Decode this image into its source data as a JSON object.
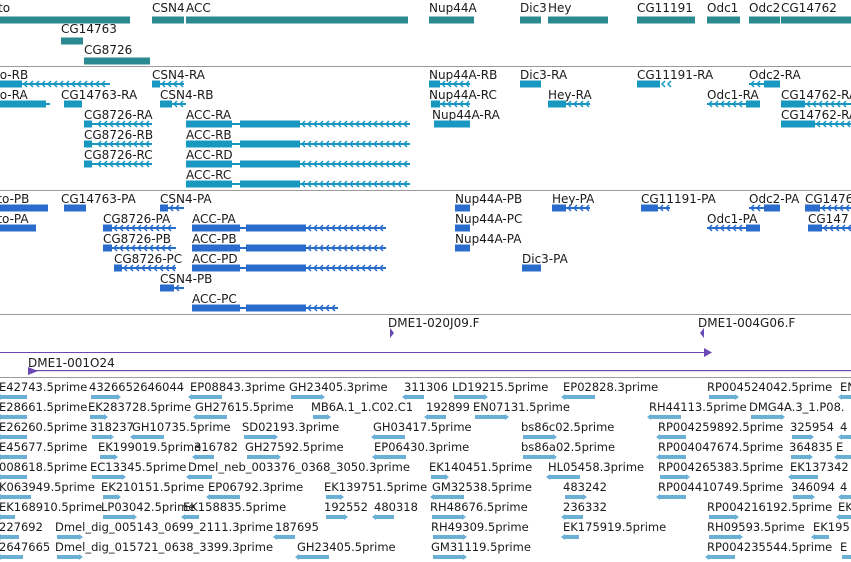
{
  "colors": {
    "gene": "#2a8a8f",
    "transcript_a": "#1898c0",
    "transcript_b": "#2a6ccc",
    "clone": "#6a49b5",
    "est": "#6ab0d6",
    "divider": "#9a9a9a"
  },
  "tracks": [
    {
      "name": "genes",
      "color_key": "gene",
      "features": [
        {
          "label": "to",
          "strand": "+"
        },
        {
          "label": "CG14763",
          "strand": "-"
        },
        {
          "label": "CG8726",
          "strand": "-"
        },
        {
          "label": "CSN4",
          "strand": "+"
        },
        {
          "label": "ACC",
          "strand": "+"
        },
        {
          "label": "Nup44A",
          "strand": "+"
        },
        {
          "label": "Dic3",
          "strand": "+"
        },
        {
          "label": "Hey",
          "strand": "+"
        },
        {
          "label": "CG11191",
          "strand": "+"
        },
        {
          "label": "Odc1",
          "strand": "+"
        },
        {
          "label": "Odc2",
          "strand": "+"
        },
        {
          "label": "CG14762",
          "strand": "+"
        }
      ]
    },
    {
      "name": "transcripts",
      "color_key": "transcript_a",
      "features": [
        {
          "label": "to-RB"
        },
        {
          "label": "to-RA"
        },
        {
          "label": "CG14763-RA"
        },
        {
          "label": "CG8726-RA"
        },
        {
          "label": "CG8726-RB"
        },
        {
          "label": "CG8726-RC"
        },
        {
          "label": "CSN4-RA"
        },
        {
          "label": "CSN4-RB"
        },
        {
          "label": "ACC-RA"
        },
        {
          "label": "ACC-RB"
        },
        {
          "label": "ACC-RD"
        },
        {
          "label": "ACC-RC"
        },
        {
          "label": "Nup44A-RB"
        },
        {
          "label": "Nup44A-RC"
        },
        {
          "label": "Nup44A-RA"
        },
        {
          "label": "Dic3-RA"
        },
        {
          "label": "Hey-RA"
        },
        {
          "label": "CG11191-RA"
        },
        {
          "label": "Odc2-RA"
        },
        {
          "label": "Odc1-RA"
        },
        {
          "label": "CG14762-RA"
        },
        {
          "label": "CG14762-RA"
        }
      ]
    },
    {
      "name": "proteins",
      "color_key": "transcript_b",
      "features": [
        {
          "label": "ito-PB"
        },
        {
          "label": "ito-PA"
        },
        {
          "label": "CG14763-PA"
        },
        {
          "label": "CSN4-PA"
        },
        {
          "label": "CG8726-PA"
        },
        {
          "label": "CG8726-PB"
        },
        {
          "label": "CG8726-PC"
        },
        {
          "label": "CSN4-PB"
        },
        {
          "label": "ACC-PA"
        },
        {
          "label": "ACC-PB"
        },
        {
          "label": "ACC-PD"
        },
        {
          "label": "ACC-PC"
        },
        {
          "label": "Nup44A-PB"
        },
        {
          "label": "Nup44A-PC"
        },
        {
          "label": "Nup44A-PA"
        },
        {
          "label": "Hey-PA"
        },
        {
          "label": "Dic3-PA"
        },
        {
          "label": "CG11191-PA"
        },
        {
          "label": "Odc2-PA"
        },
        {
          "label": "Odc1-PA"
        },
        {
          "label": "CG1476"
        },
        {
          "label": "CG147"
        }
      ]
    },
    {
      "name": "clones",
      "color_key": "clone",
      "features": [
        {
          "label": "DME1-020J09.F"
        },
        {
          "label": "DME1-004G06.F"
        },
        {
          "label": "DME1-001O24"
        }
      ]
    },
    {
      "name": "ests",
      "color_key": "est",
      "rows": [
        [
          "E42743.5prime",
          "4326652646044",
          "EP08843.3prime",
          "GH23405.3prime",
          "311306",
          "LD19215.5prime",
          "EP02828.3prime",
          "RP004524042.5prime",
          "EN"
        ],
        [
          "E28661.5prime",
          "EK283728.5prime",
          "GH27615.5prime",
          "MB6A.1_1.C02.C1",
          "192899",
          "EN07131.5prime",
          "RH44113.5prime",
          "DMG4A.3_1.P08."
        ],
        [
          "E26260.5prime",
          "318237",
          "GH10735.5prime",
          "SD02193.3prime",
          "GH03417.5prime",
          "bs86c02.5prime",
          "RP004259892.5prime",
          "325954",
          "4"
        ],
        [
          "E45677.5prime",
          "EK199019.5prime",
          "316782",
          "GH27592.5prime",
          "EP06430.3prime",
          "bs86a02.5prime",
          "RP004047674.5prime",
          "364835",
          "E"
        ],
        [
          "008618.5prime",
          "EC13345.5prime",
          "Dmel_neb_003376_0368_3050.3prime",
          "EK140451.5prime",
          "HL05458.3prime",
          "RP004265383.5prime",
          "EK137342"
        ],
        [
          "K063949.5prime",
          "EK210151.5prime",
          "EP06792.3prime",
          "EK139751.5prime",
          "GM32538.5prime",
          "483242",
          "RP004410749.5prime",
          "346094",
          "4"
        ],
        [
          "EK168910.5prime",
          "LP03042.5prime",
          "EK158835.5prime",
          "192552",
          "480318",
          "RH48676.5prime",
          "236332",
          "RP004216192.5prime",
          "EK"
        ],
        [
          "227692",
          "Dmel_dig_005143_0699_2111.3prime",
          "187695",
          "RH49309.5prime",
          "EK175919.5prime",
          "RH09593.5prime",
          "EK195"
        ],
        [
          "2647665",
          "Dmel_dig_015721_0638_3399.3prime",
          "GH23405.5prime",
          "GM31119.5prime",
          "RP004235544.5prime",
          "E"
        ]
      ]
    }
  ]
}
